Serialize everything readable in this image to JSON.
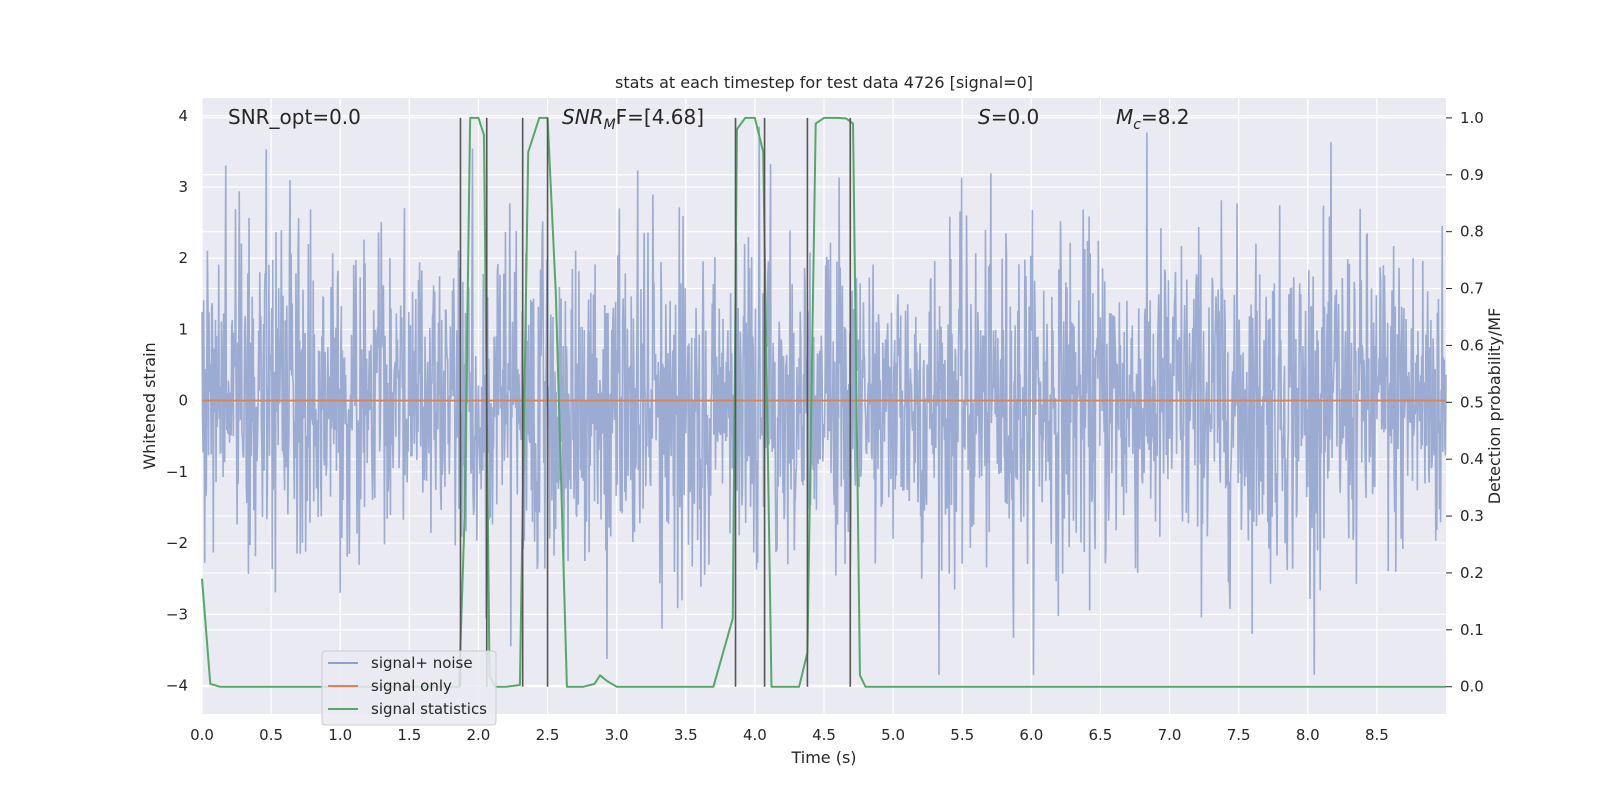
{
  "chart_data": {
    "type": "line",
    "title": "stats at each timestep for test data 4726 [signal=0]",
    "xlabel": "Time (s)",
    "ylabel": "Whitened strain",
    "y2label": "Detection probability/MF",
    "xlim": [
      0.0,
      9.0
    ],
    "ylim": [
      -4.4,
      4.25
    ],
    "y2lim": [
      -0.048,
      1.035
    ],
    "x_ticks": [
      "0.0",
      "0.5",
      "1.0",
      "1.5",
      "2.0",
      "2.5",
      "3.0",
      "3.5",
      "4.0",
      "4.5",
      "5.0",
      "5.5",
      "6.0",
      "6.5",
      "7.0",
      "7.5",
      "8.0",
      "8.5"
    ],
    "y_ticks": [
      "4",
      "3",
      "2",
      "1",
      "0",
      "−1",
      "−2",
      "−3",
      "−4"
    ],
    "y2_ticks": [
      "1.0",
      "0.9",
      "0.8",
      "0.7",
      "0.6",
      "0.5",
      "0.4",
      "0.3",
      "0.2",
      "0.1",
      "0.0"
    ],
    "grid": true,
    "legend_position": "lower-left",
    "annotations": {
      "snr_opt": "SNR_opt=0.0",
      "snr_mf_main": "SNR",
      "snr_mf_sub": "M",
      "snr_mf_tail": "F=[4.68]",
      "s_main": "S",
      "s_tail": "=0.0",
      "mc_main": "M",
      "mc_sub": "c",
      "mc_tail": "=8.2"
    },
    "series": [
      {
        "name": "signal+ noise",
        "color": "#8da0cb",
        "kind": "noise",
        "sigma": 1.0,
        "sample_rate_hz": 256
      },
      {
        "name": "signal only",
        "color": "#dd8452",
        "kind": "line",
        "x": [
          0.0,
          9.0
        ],
        "y": [
          0.0,
          0.0
        ]
      },
      {
        "name": "signal statistics",
        "color": "#55a868",
        "kind": "line",
        "axis": "right",
        "x": [
          0.0,
          0.06,
          0.13,
          0.5,
          1.0,
          1.5,
          1.86,
          1.9,
          1.94,
          2.0,
          2.04,
          2.08,
          2.12,
          2.2,
          2.3,
          2.36,
          2.44,
          2.5,
          2.56,
          2.64,
          2.76,
          2.84,
          2.88,
          2.93,
          3.0,
          3.5,
          3.7,
          3.84,
          3.87,
          3.93,
          4.0,
          4.06,
          4.12,
          4.2,
          4.32,
          4.38,
          4.44,
          4.5,
          4.6,
          4.66,
          4.71,
          4.76,
          4.8,
          5.0,
          6.0,
          7.0,
          8.0,
          9.0
        ],
        "y": [
          0.19,
          0.005,
          0.0,
          0.0,
          0.0,
          0.0,
          0.0,
          0.3,
          1.0,
          1.0,
          0.97,
          0.02,
          0.0,
          0.0,
          0.003,
          0.94,
          1.0,
          1.0,
          0.69,
          0.0,
          0.0,
          0.005,
          0.02,
          0.01,
          0.0,
          0.0,
          0.0,
          0.12,
          0.98,
          1.0,
          1.0,
          0.94,
          0.0,
          0.0,
          0.0,
          0.06,
          0.99,
          1.0,
          1.0,
          0.999,
          0.99,
          0.02,
          0.0,
          0.0,
          0.0,
          0.0,
          0.0,
          0.0
        ]
      }
    ],
    "vertical_markers": {
      "color": "#555555",
      "x": [
        1.87,
        2.06,
        2.32,
        2.5,
        3.86,
        4.07,
        4.38,
        4.69
      ],
      "top_y2": 1.0,
      "bottom_y2": 0.0
    }
  }
}
